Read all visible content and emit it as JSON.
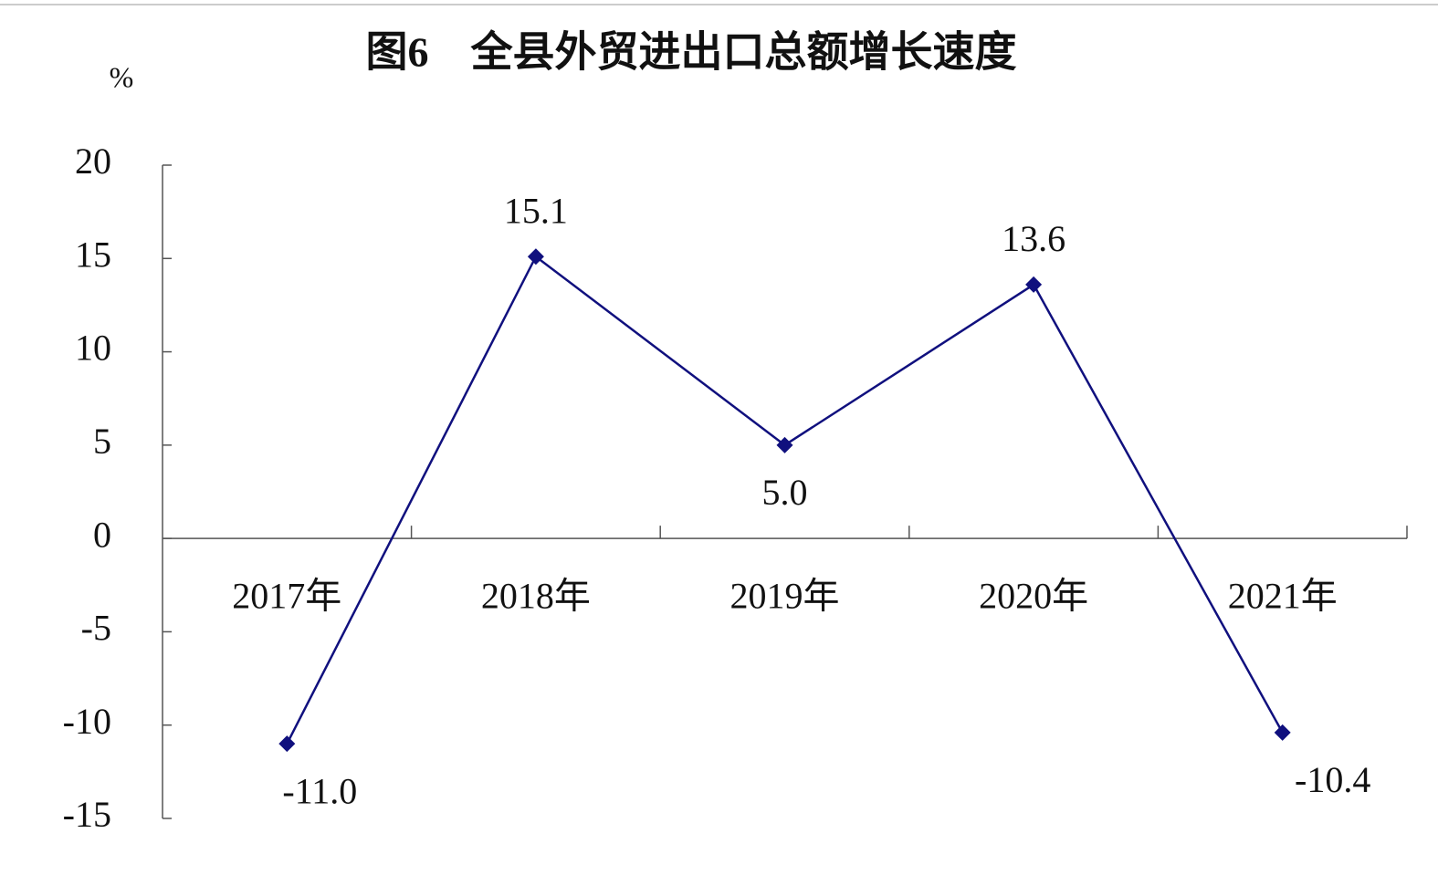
{
  "chart_data": {
    "type": "line",
    "title": "图6　全县外贸进出口总额增长速度",
    "y_label": "%",
    "categories": [
      "2017年",
      "2018年",
      "2019年",
      "2020年",
      "2021年"
    ],
    "series": [
      {
        "name": "增长速度",
        "color": "#10107e",
        "values": [
          -11.0,
          15.1,
          5.0,
          13.6,
          -10.4
        ],
        "value_labels": [
          "-11.0",
          "15.1",
          "5.0",
          "13.6",
          "-10.4"
        ]
      }
    ],
    "ylim": [
      -15,
      20
    ],
    "yticks": [
      -15,
      -10,
      -5,
      0,
      5,
      10,
      15,
      20
    ],
    "grid": false
  }
}
